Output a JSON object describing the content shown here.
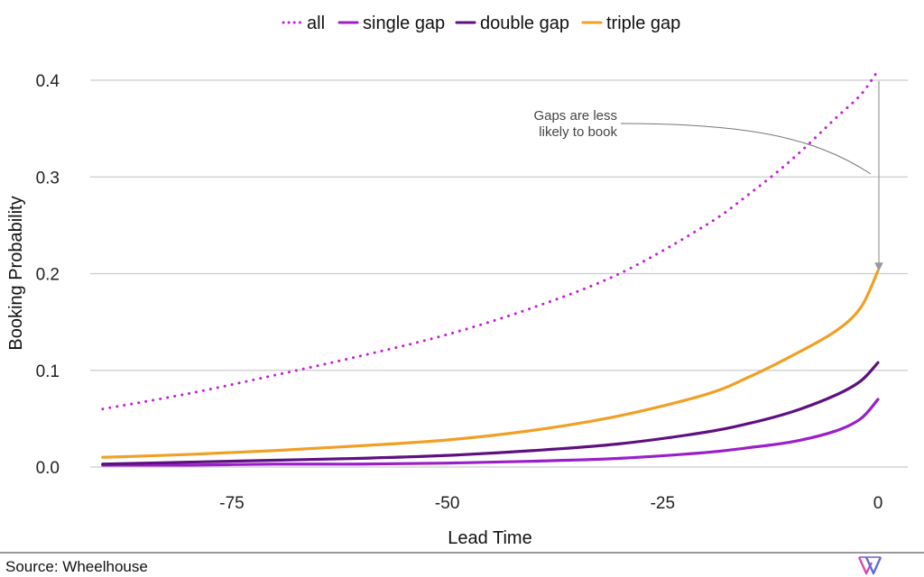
{
  "chart_data": {
    "type": "line",
    "xlabel": "Lead Time",
    "ylabel": "Booking Probability",
    "xlim": [
      -90,
      0
    ],
    "ylim": [
      0,
      0.4
    ],
    "x_ticks": [
      -75,
      -50,
      -25,
      0
    ],
    "y_ticks": [
      0.0,
      0.1,
      0.2,
      0.3,
      0.4
    ],
    "x_tick_labels": [
      "-75",
      "-50",
      "-25",
      "0"
    ],
    "y_tick_labels": [
      "0.0",
      "0.1",
      "0.2",
      "0.3",
      "0.4"
    ],
    "grid": "horizontal",
    "legend_position": "top",
    "x": [
      -90,
      -80,
      -70,
      -60,
      -50,
      -40,
      -30,
      -20,
      -15,
      -10,
      -5,
      -2,
      0
    ],
    "series": [
      {
        "name": "all",
        "style": "dotted",
        "color": "#c41dd8",
        "values": [
          0.06,
          0.076,
          0.095,
          0.115,
          0.137,
          0.165,
          0.2,
          0.25,
          0.282,
          0.318,
          0.36,
          0.385,
          0.41
        ]
      },
      {
        "name": "single gap",
        "style": "solid",
        "color": "#9b1fc9",
        "values": [
          0.002,
          0.002,
          0.003,
          0.003,
          0.004,
          0.006,
          0.009,
          0.015,
          0.02,
          0.026,
          0.037,
          0.05,
          0.07
        ]
      },
      {
        "name": "double gap",
        "style": "solid",
        "color": "#5f1080",
        "values": [
          0.003,
          0.005,
          0.007,
          0.009,
          0.012,
          0.017,
          0.024,
          0.036,
          0.045,
          0.057,
          0.074,
          0.089,
          0.108
        ]
      },
      {
        "name": "triple gap",
        "style": "solid",
        "color": "#f0a024",
        "values": [
          0.01,
          0.013,
          0.017,
          0.022,
          0.028,
          0.038,
          0.053,
          0.075,
          0.093,
          0.115,
          0.14,
          0.165,
          0.203
        ]
      }
    ],
    "annotation": {
      "text_lines": [
        "Gaps are less",
        "likely to book"
      ]
    }
  },
  "footer": {
    "source": "Source: Wheelhouse",
    "logo_icon": "wheelhouse-logo-icon"
  }
}
